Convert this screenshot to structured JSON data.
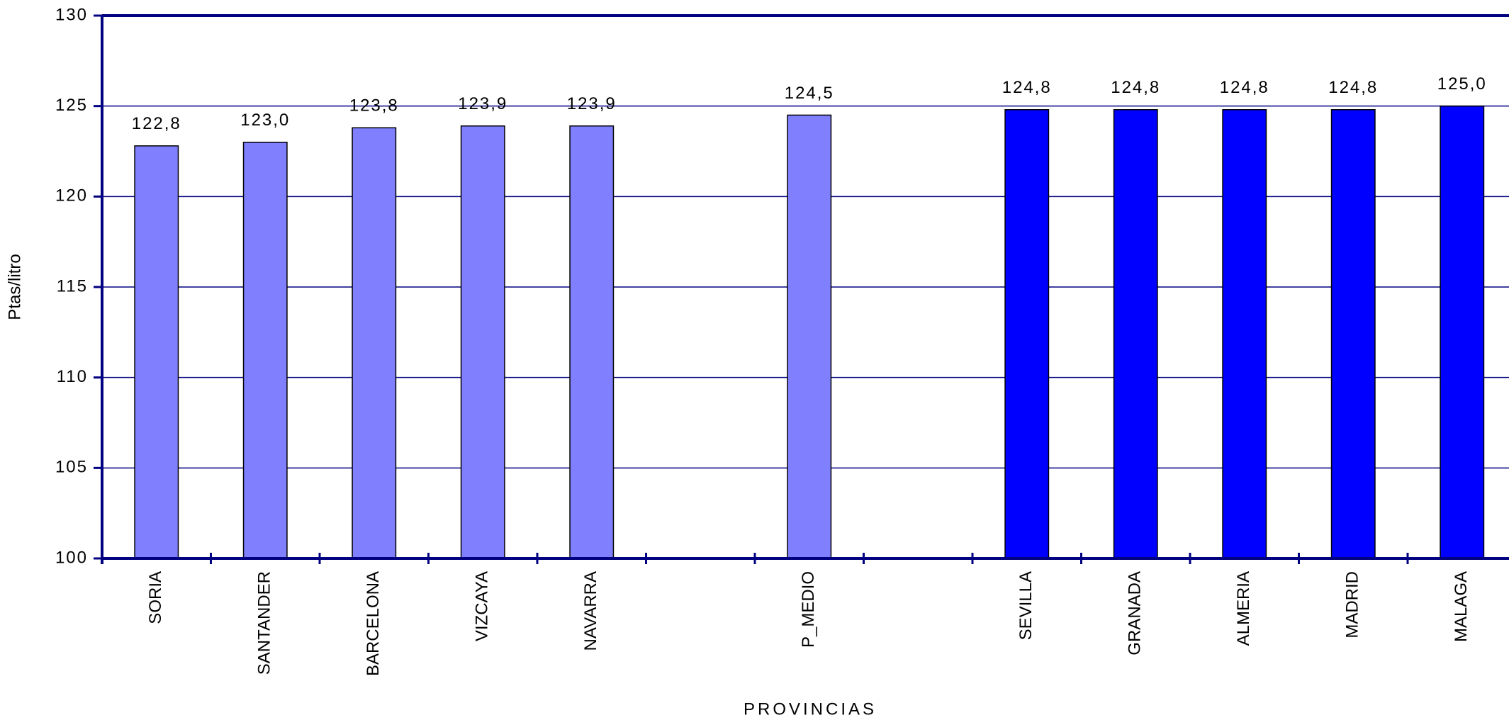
{
  "chart_data": {
    "type": "bar",
    "y_label": "Ptas/litro",
    "x_label": "PROVINCIAS",
    "categories": [
      "SORIA",
      "SANTANDER",
      "BARCELONA",
      "VIZCAYA",
      "NAVARRA",
      null,
      "P_MEDIO",
      null,
      "SEVILLA",
      "GRANADA",
      "ALMERIA",
      "MADRID",
      "MALAGA"
    ],
    "values": [
      122.8,
      123.0,
      123.8,
      123.9,
      123.9,
      null,
      124.5,
      null,
      124.8,
      124.8,
      124.8,
      124.8,
      125.0
    ],
    "value_labels": [
      "122,8",
      "123,0",
      "123,8",
      "123,9",
      "123,9",
      null,
      "124,5",
      null,
      "124,8",
      "124,8",
      "124,8",
      "124,8",
      "125,0"
    ],
    "colors": [
      "#8080ff",
      "#8080ff",
      "#8080ff",
      "#8080ff",
      "#8080ff",
      null,
      "#8080ff",
      null,
      "#0000ff",
      "#0000ff",
      "#0000ff",
      "#0000ff",
      "#0000ff"
    ],
    "ylim": [
      100,
      130
    ],
    "yticks": [
      100,
      105,
      110,
      115,
      120,
      125,
      130
    ],
    "grid": true,
    "grid_color": "#000080"
  }
}
